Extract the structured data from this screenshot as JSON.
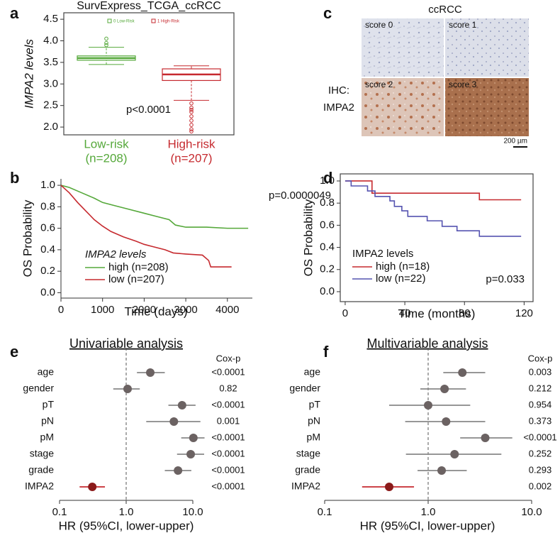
{
  "chart_data": [
    {
      "type": "box",
      "panel": "a",
      "title": "SurvExpress_TCGA_ccRCC",
      "ylabel": "IMPA2 levels",
      "categories": [
        "Low-risk",
        "High-risk"
      ],
      "category_counts": [
        "(n=208)",
        "(n=207)"
      ],
      "series": [
        {
          "name": "0 Low-Risk",
          "color": "#55a83a",
          "min": 3.45,
          "q1": 3.55,
          "median": 3.6,
          "q3": 3.65,
          "max": 3.85,
          "outliers": [
            3.9,
            3.95,
            4.05
          ]
        },
        {
          "name": "1 High-Risk",
          "color": "#c62a2f",
          "min": 2.62,
          "q1": 3.08,
          "median": 3.22,
          "q3": 3.35,
          "max": 3.42,
          "outliers": [
            2.55,
            2.45,
            2.4,
            2.35,
            2.25,
            2.15,
            2.05,
            1.95,
            1.9
          ]
        }
      ],
      "ylim": [
        1.82,
        4.65
      ],
      "yticks": [
        {
          "value": 2,
          "label": "2.0"
        },
        {
          "value": 2.5,
          "label": "2.5"
        },
        {
          "value": 3,
          "label": "3.0"
        },
        {
          "value": 3.5,
          "label": "3.5"
        },
        {
          "value": 4,
          "label": "4.0"
        },
        {
          "value": 4.5,
          "label": "4.5"
        }
      ],
      "annotation": "p<0.0001",
      "frame": true
    },
    {
      "type": "line",
      "panel": "b",
      "xlabel": "Time (days)",
      "ylabel": "OS Probability",
      "legend_title": "IMPA2 levels",
      "series": [
        {
          "name": "high (n=208)",
          "color": "#55a83a",
          "x": [
            0,
            200,
            500,
            800,
            1000,
            1300,
            1600,
            2000,
            2300,
            2600,
            2750,
            3000,
            3500,
            4000,
            4500
          ],
          "values": [
            1,
            0.98,
            0.93,
            0.88,
            0.84,
            0.81,
            0.78,
            0.74,
            0.71,
            0.68,
            0.63,
            0.61,
            0.61,
            0.6,
            0.6
          ]
        },
        {
          "name": "low (n=207)",
          "color": "#c62a2f",
          "x": [
            0,
            200,
            400,
            600,
            800,
            1000,
            1200,
            1500,
            1800,
            2000,
            2200,
            2500,
            2700,
            3000,
            3400,
            3550,
            3600,
            4100
          ],
          "values": [
            1,
            0.93,
            0.84,
            0.76,
            0.68,
            0.62,
            0.57,
            0.52,
            0.48,
            0.45,
            0.43,
            0.4,
            0.37,
            0.36,
            0.35,
            0.3,
            0.24,
            0.24
          ]
        }
      ],
      "xlim": [
        0,
        4600
      ],
      "xticks": [
        0,
        1000,
        2000,
        3000,
        4000
      ],
      "ylim": [
        -0.05,
        1.06
      ],
      "yticks": [
        {
          "value": 0,
          "label": "0.0"
        },
        {
          "value": 0.2,
          "label": "0.2"
        },
        {
          "value": 0.4,
          "label": "0.4"
        },
        {
          "value": 0.6,
          "label": "0.6"
        },
        {
          "value": 0.8,
          "label": "0.8"
        },
        {
          "value": 1,
          "label": "1.0"
        }
      ],
      "annotation": "p=0.0000049",
      "frame": false
    },
    {
      "type": "line",
      "panel": "d",
      "xlabel": "Time (months)",
      "ylabel": "OS Probability",
      "legend_title": "IMPA2 levels",
      "series": [
        {
          "name": "high (n=18)",
          "color": "#c62a2f",
          "x": [
            0,
            18,
            18,
            90,
            90,
            118
          ],
          "values": [
            1,
            1,
            0.89,
            0.89,
            0.83,
            0.83
          ]
        },
        {
          "name": "low (n=22)",
          "color": "#5553b0",
          "x": [
            0,
            4,
            4,
            15,
            15,
            20,
            20,
            30,
            30,
            33,
            33,
            38,
            38,
            42,
            42,
            55,
            55,
            65,
            65,
            75,
            75,
            90,
            90,
            118
          ],
          "values": [
            1,
            1,
            0.955,
            0.955,
            0.91,
            0.91,
            0.86,
            0.86,
            0.82,
            0.82,
            0.77,
            0.77,
            0.73,
            0.73,
            0.68,
            0.68,
            0.64,
            0.64,
            0.59,
            0.59,
            0.55,
            0.55,
            0.5,
            0.5
          ]
        }
      ],
      "xlim": [
        -3.3,
        126
      ],
      "xticks": [
        0,
        40,
        80,
        120
      ],
      "ylim": [
        -0.09,
        1.064
      ],
      "yticks": [
        {
          "value": 0,
          "label": "0.0"
        },
        {
          "value": 0.2,
          "label": "0.2"
        },
        {
          "value": 0.4,
          "label": "0.4"
        },
        {
          "value": 0.6,
          "label": "0.6"
        },
        {
          "value": 0.8,
          "label": "0.8"
        },
        {
          "value": 1,
          "label": "1.0"
        }
      ],
      "annotation": "p=0.033",
      "frame": true
    },
    {
      "type": "forest",
      "panel": "e",
      "title": "Univariable analysis",
      "xlabel": "HR (95%CI, lower-upper)",
      "log": true,
      "reference_line": 1,
      "categories": [
        "age",
        "gender",
        "pT",
        "pN",
        "pM",
        "stage",
        "grade",
        "IMPA2"
      ],
      "values": [
        2.3,
        1.05,
        6.9,
        5.2,
        10.2,
        9.3,
        6.0,
        0.31
      ],
      "ci_low": [
        1.45,
        0.64,
        4.3,
        2.0,
        6.7,
        5.8,
        3.8,
        0.2
      ],
      "ci_high": [
        3.8,
        1.6,
        11,
        13,
        15,
        14.8,
        9.5,
        0.48
      ],
      "colors": [
        "#6b6262",
        "#6b6262",
        "#6b6262",
        "#6b6262",
        "#6b6262",
        "#6b6262",
        "#6b6262",
        "#8b1a1a"
      ],
      "line_colors": [
        "#888888",
        "#888888",
        "#888888",
        "#888888",
        "#888888",
        "#888888",
        "#888888",
        "#c62a2f"
      ],
      "cox_p_header": "Cox-p",
      "cox_p": [
        "<0.0001",
        "0.82",
        "<0.0001",
        "0.001",
        "<0.0001",
        "<0.0001",
        "<0.0001",
        "<0.0001"
      ],
      "xlim": [
        0.1,
        10
      ],
      "xticks": [
        0.1,
        {
          "value": 1,
          "label": "1.0"
        },
        {
          "value": 10,
          "label": "10.0"
        }
      ]
    },
    {
      "type": "forest",
      "panel": "f",
      "title": "Multivariable analysis",
      "xlabel": "HR (95%CI, lower-upper)",
      "log": true,
      "reference_line": 1,
      "categories": [
        "age",
        "gender",
        "pT",
        "pN",
        "pM",
        "stage",
        "grade",
        "IMPA2"
      ],
      "values": [
        2.14,
        1.44,
        1.0,
        1.49,
        3.56,
        1.8,
        1.35,
        0.42
      ],
      "ci_low": [
        1.4,
        0.84,
        0.42,
        0.6,
        2.04,
        0.61,
        0.79,
        0.23
      ],
      "ci_high": [
        3.56,
        2.32,
        2.55,
        3.56,
        6.5,
        5.1,
        2.36,
        0.73
      ],
      "colors": [
        "#6b6262",
        "#6b6262",
        "#6b6262",
        "#6b6262",
        "#6b6262",
        "#6b6262",
        "#6b6262",
        "#8b1a1a"
      ],
      "line_colors": [
        "#888888",
        "#888888",
        "#888888",
        "#888888",
        "#888888",
        "#888888",
        "#888888",
        "#c62a2f"
      ],
      "cox_p_header": "Cox-p",
      "cox_p": [
        "0.003",
        "0.212",
        "0.954",
        "0.373",
        "<0.0001",
        "0.252",
        "0.293",
        "0.002"
      ],
      "xlim": [
        0.1,
        10
      ],
      "xticks": [
        0.1,
        {
          "value": 1,
          "label": "1.0"
        },
        {
          "value": 10,
          "label": "10.0"
        }
      ]
    }
  ],
  "ihc_panel": {
    "panel": "c",
    "title": "ccRCC",
    "row_label": [
      "IHC:",
      "IMPA2"
    ],
    "tiles": [
      "score 0",
      "score 1",
      "score 2",
      "score 3"
    ],
    "scale_bar": "200 µm"
  }
}
